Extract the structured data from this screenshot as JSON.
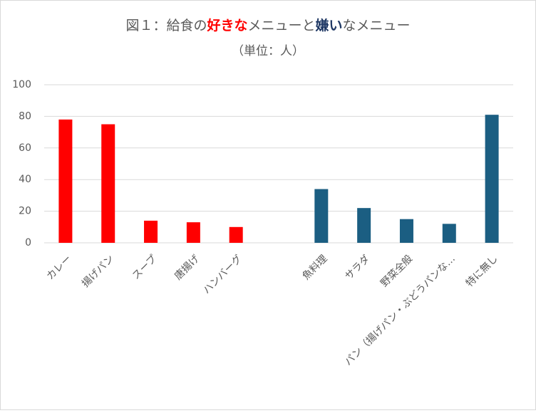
{
  "chart_data": {
    "type": "bar",
    "title": [
      {
        "text": "図１：給食の",
        "color": "#595959",
        "bold": false
      },
      {
        "text": "好きな",
        "color": "#ff0000",
        "bold": true
      },
      {
        "text": "メニューと",
        "color": "#595959",
        "bold": false
      },
      {
        "text": "嫌い",
        "color": "#1f3864",
        "bold": true
      },
      {
        "text": "なメニュー",
        "color": "#595959",
        "bold": false
      }
    ],
    "subtitle": "（単位：人）",
    "categories": [
      "カレー",
      "揚げパン",
      "スープ",
      "唐揚げ",
      "ハンバーグ",
      null,
      "魚料理",
      "サラダ",
      "野菜全般",
      "パン（揚げパン・ぶどうパンな…",
      "特に無し"
    ],
    "values": [
      78,
      75,
      14,
      13,
      10,
      null,
      34,
      22,
      15,
      12,
      81
    ],
    "colors": [
      "#ff0000",
      "#ff0000",
      "#ff0000",
      "#ff0000",
      "#ff0000",
      null,
      "#1b5e82",
      "#1b5e82",
      "#1b5e82",
      "#1b5e82",
      "#1b5e82"
    ],
    "ylim": [
      0,
      100
    ],
    "yticks": [
      0,
      20,
      40,
      60,
      80,
      100
    ],
    "grid": true
  }
}
